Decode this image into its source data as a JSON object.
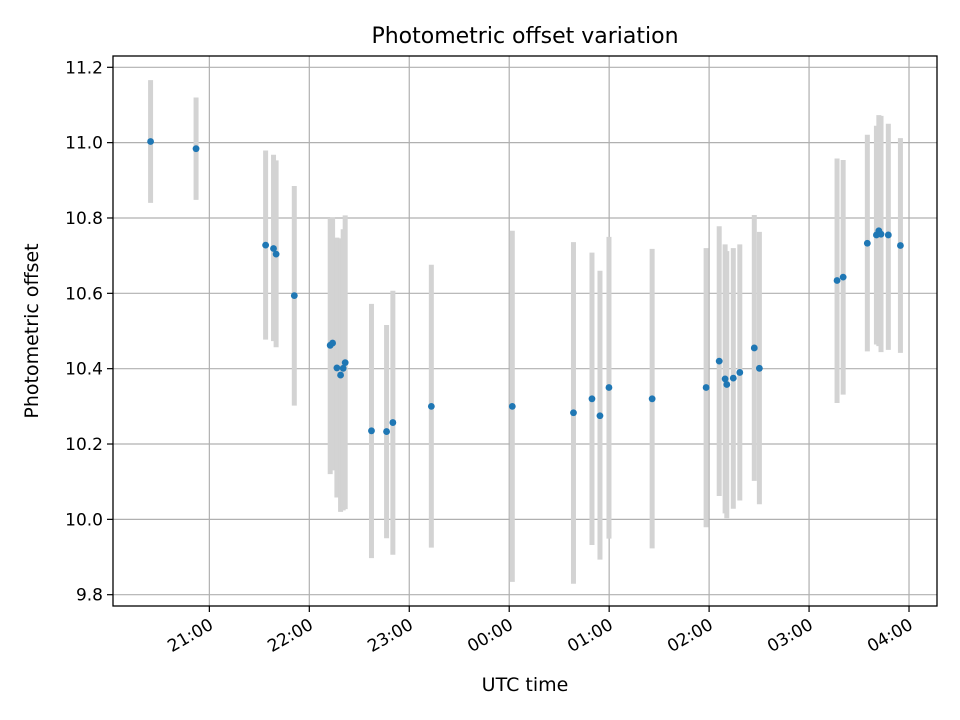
{
  "chart_data": {
    "type": "scatter",
    "title": "Photometric offset variation",
    "xlabel": "UTC time",
    "ylabel": "Photometric offset",
    "grid": true,
    "x_unit": "UTC time (hours after 20:00)",
    "x_ticks": [
      {
        "x": 1,
        "label": "21:00"
      },
      {
        "x": 2,
        "label": "22:00"
      },
      {
        "x": 3,
        "label": "23:00"
      },
      {
        "x": 4,
        "label": "00:00"
      },
      {
        "x": 5,
        "label": "01:00"
      },
      {
        "x": 6,
        "label": "02:00"
      },
      {
        "x": 7,
        "label": "03:00"
      },
      {
        "x": 8,
        "label": "04:00"
      }
    ],
    "y_ticks": [
      {
        "y": 9.8,
        "label": "9.8"
      },
      {
        "y": 10.0,
        "label": "10.0"
      },
      {
        "y": 10.2,
        "label": "10.2"
      },
      {
        "y": 10.4,
        "label": "10.4"
      },
      {
        "y": 10.6,
        "label": "10.6"
      },
      {
        "y": 10.8,
        "label": "10.8"
      },
      {
        "y": 11.0,
        "label": "11.0"
      },
      {
        "y": 11.2,
        "label": "11.2"
      }
    ],
    "xlim": [
      0.036,
      8.28
    ],
    "ylim": [
      9.77,
      11.23
    ],
    "colors": {
      "point": "#1f77b4",
      "errorbar": "#d3d3d3",
      "grid": "#b0b0b0"
    },
    "points": [
      {
        "x": 0.412,
        "y": 11.003,
        "lo": 10.84,
        "hi": 11.166
      },
      {
        "x": 0.867,
        "y": 10.984,
        "lo": 10.848,
        "hi": 11.12
      },
      {
        "x": 1.563,
        "y": 10.728,
        "lo": 10.477,
        "hi": 10.979
      },
      {
        "x": 1.642,
        "y": 10.719,
        "lo": 10.473,
        "hi": 10.968
      },
      {
        "x": 1.668,
        "y": 10.704,
        "lo": 10.457,
        "hi": 10.953
      },
      {
        "x": 1.85,
        "y": 10.594,
        "lo": 10.302,
        "hi": 10.885
      },
      {
        "x": 2.209,
        "y": 10.462,
        "lo": 10.12,
        "hi": 10.8
      },
      {
        "x": 2.233,
        "y": 10.468,
        "lo": 10.13,
        "hi": 10.802
      },
      {
        "x": 2.276,
        "y": 10.402,
        "lo": 10.058,
        "hi": 10.748
      },
      {
        "x": 2.313,
        "y": 10.383,
        "lo": 10.02,
        "hi": 10.746
      },
      {
        "x": 2.339,
        "y": 10.401,
        "lo": 10.024,
        "hi": 10.77
      },
      {
        "x": 2.359,
        "y": 10.416,
        "lo": 10.027,
        "hi": 10.807
      },
      {
        "x": 2.622,
        "y": 10.235,
        "lo": 9.897,
        "hi": 10.572
      },
      {
        "x": 2.773,
        "y": 10.233,
        "lo": 9.95,
        "hi": 10.516
      },
      {
        "x": 2.836,
        "y": 10.257,
        "lo": 9.906,
        "hi": 10.607
      },
      {
        "x": 3.221,
        "y": 10.3,
        "lo": 9.925,
        "hi": 10.676
      },
      {
        "x": 4.031,
        "y": 10.3,
        "lo": 9.834,
        "hi": 10.766
      },
      {
        "x": 4.643,
        "y": 10.283,
        "lo": 9.829,
        "hi": 10.736
      },
      {
        "x": 4.828,
        "y": 10.32,
        "lo": 9.932,
        "hi": 10.708
      },
      {
        "x": 4.908,
        "y": 10.275,
        "lo": 9.893,
        "hi": 10.66
      },
      {
        "x": 4.998,
        "y": 10.35,
        "lo": 9.949,
        "hi": 10.75
      },
      {
        "x": 5.43,
        "y": 10.32,
        "lo": 9.923,
        "hi": 10.718
      },
      {
        "x": 5.97,
        "y": 10.35,
        "lo": 9.979,
        "hi": 10.72
      },
      {
        "x": 6.101,
        "y": 10.42,
        "lo": 10.062,
        "hi": 10.778
      },
      {
        "x": 6.16,
        "y": 10.373,
        "lo": 10.016,
        "hi": 10.73
      },
      {
        "x": 6.177,
        "y": 10.358,
        "lo": 10.003,
        "hi": 10.712
      },
      {
        "x": 6.242,
        "y": 10.375,
        "lo": 10.028,
        "hi": 10.72
      },
      {
        "x": 6.307,
        "y": 10.39,
        "lo": 10.05,
        "hi": 10.73
      },
      {
        "x": 6.452,
        "y": 10.455,
        "lo": 10.102,
        "hi": 10.808
      },
      {
        "x": 6.503,
        "y": 10.401,
        "lo": 10.04,
        "hi": 10.763
      },
      {
        "x": 7.28,
        "y": 10.634,
        "lo": 10.309,
        "hi": 10.958
      },
      {
        "x": 7.341,
        "y": 10.643,
        "lo": 10.331,
        "hi": 10.954
      },
      {
        "x": 7.583,
        "y": 10.733,
        "lo": 10.446,
        "hi": 11.021
      },
      {
        "x": 7.674,
        "y": 10.755,
        "lo": 10.464,
        "hi": 11.045
      },
      {
        "x": 7.698,
        "y": 10.766,
        "lo": 10.46,
        "hi": 11.073
      },
      {
        "x": 7.72,
        "y": 10.757,
        "lo": 10.444,
        "hi": 11.071
      },
      {
        "x": 7.793,
        "y": 10.755,
        "lo": 10.45,
        "hi": 11.05
      },
      {
        "x": 7.914,
        "y": 10.727,
        "lo": 10.442,
        "hi": 11.012
      }
    ]
  }
}
